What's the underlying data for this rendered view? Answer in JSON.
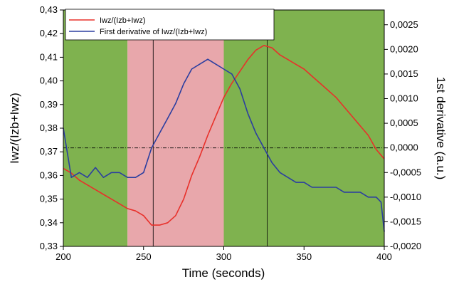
{
  "chart_data": {
    "type": "line",
    "x_axis": {
      "label": "Time (seconds)",
      "range": [
        200,
        400
      ],
      "ticks": [
        200,
        250,
        300,
        350,
        400
      ],
      "tick_labels": [
        "200",
        "250",
        "300",
        "350",
        "400"
      ]
    },
    "y_left_axis": {
      "label": "Iwz/(Izb+Iwz)",
      "range": [
        0.33,
        0.43
      ],
      "ticks": [
        0.33,
        0.34,
        0.35,
        0.36,
        0.37,
        0.38,
        0.39,
        0.4,
        0.41,
        0.42,
        0.43
      ],
      "tick_labels": [
        "0,33",
        "0,34",
        "0,35",
        "0,36",
        "0,37",
        "0,38",
        "0,39",
        "0,40",
        "0,41",
        "0,42",
        "0,43"
      ]
    },
    "y_right_axis": {
      "label": "1st derivative (a.u.)",
      "range": [
        -0.002,
        0.0028
      ],
      "ticks": [
        -0.002,
        -0.0015,
        -0.001,
        -0.0005,
        0,
        0.0005,
        0.001,
        0.0015,
        0.002,
        0.0025
      ],
      "tick_labels": [
        "-0,0020",
        "-0,0015",
        "-0,0010",
        "-0,0005",
        "0,0000",
        "0,0005",
        "0,0010",
        "0,0015",
        "0,0020",
        "0,0025"
      ]
    },
    "background_regions": [
      {
        "x": [
          200,
          240
        ],
        "color": "#7fb24f"
      },
      {
        "x": [
          240,
          300
        ],
        "color": "#e8a7ab"
      },
      {
        "x": [
          300,
          400
        ],
        "color": "#7fb24f"
      }
    ],
    "vertical_lines": [
      256,
      327
    ],
    "zero_line": 0,
    "legend": {
      "position": "top-left"
    },
    "series": [
      {
        "name": "Iwz/(Izb+Iwz)",
        "axis": "left",
        "color": "#e8302a",
        "x": [
          200,
          205,
          210,
          215,
          220,
          225,
          230,
          235,
          240,
          245,
          250,
          255,
          260,
          265,
          270,
          275,
          280,
          285,
          290,
          295,
          300,
          305,
          310,
          315,
          320,
          325,
          330,
          335,
          340,
          345,
          350,
          355,
          360,
          365,
          370,
          375,
          380,
          385,
          390,
          395,
          400
        ],
        "y": [
          0.363,
          0.361,
          0.358,
          0.356,
          0.354,
          0.352,
          0.35,
          0.348,
          0.346,
          0.345,
          0.343,
          0.339,
          0.339,
          0.34,
          0.343,
          0.35,
          0.36,
          0.368,
          0.377,
          0.385,
          0.393,
          0.399,
          0.404,
          0.409,
          0.413,
          0.415,
          0.414,
          0.411,
          0.409,
          0.407,
          0.405,
          0.402,
          0.399,
          0.396,
          0.393,
          0.389,
          0.385,
          0.381,
          0.377,
          0.371,
          0.367
        ]
      },
      {
        "name": "First derivative of Iwz/(Izb+Iwz)",
        "axis": "right",
        "color": "#2b3ea0",
        "x": [
          200,
          205,
          210,
          215,
          220,
          225,
          230,
          235,
          240,
          245,
          250,
          255,
          260,
          265,
          270,
          275,
          280,
          285,
          290,
          295,
          300,
          305,
          310,
          315,
          320,
          325,
          330,
          335,
          340,
          345,
          350,
          355,
          360,
          365,
          370,
          375,
          380,
          385,
          390,
          395,
          398,
          400
        ],
        "y": [
          0.0004,
          -0.0006,
          -0.0005,
          -0.0006,
          -0.0004,
          -0.0006,
          -0.0005,
          -0.0005,
          -0.0006,
          -0.0006,
          -0.0005,
          0.0,
          0.0003,
          0.0006,
          0.0009,
          0.0013,
          0.0016,
          0.0017,
          0.0018,
          0.0017,
          0.0016,
          0.0015,
          0.0012,
          0.0007,
          0.0003,
          0.0,
          -0.0003,
          -0.0005,
          -0.0006,
          -0.0007,
          -0.0007,
          -0.0008,
          -0.0008,
          -0.0008,
          -0.0008,
          -0.0009,
          -0.0009,
          -0.0009,
          -0.001,
          -0.001,
          -0.0011,
          -0.0017
        ]
      }
    ]
  }
}
